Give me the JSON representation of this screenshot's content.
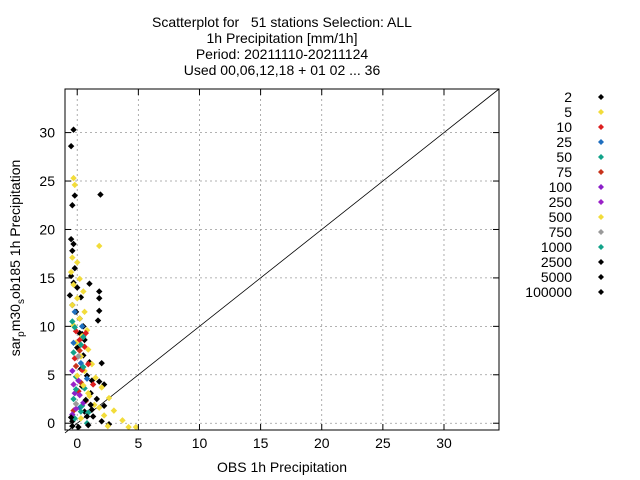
{
  "chart_data": {
    "type": "scatter",
    "title_lines": [
      "Scatterplot for   51 stations Selection: ALL",
      "1h Precipitation [mm/1h]",
      "Period: 20211110-20211124",
      "Used 00,06,12,18 + 01 02 ... 36"
    ],
    "xlabel": "OBS 1h Precipitation",
    "ylabel_main": "sar",
    "ylabel_sub1": "p",
    "ylabel_mid": "m30",
    "ylabel_sub2": "s",
    "ylabel_tail": "ob185 1h Precipitation",
    "xlim": [
      -1,
      34.5
    ],
    "ylim": [
      -0.7,
      34.5
    ],
    "xticks": [
      0,
      5,
      10,
      15,
      20,
      25,
      30
    ],
    "yticks": [
      0,
      5,
      10,
      15,
      20,
      25,
      30
    ],
    "grid": true,
    "diagonal": [
      [
        -1,
        -1
      ],
      [
        34.5,
        34.5
      ]
    ],
    "legend_position": "right",
    "series": [
      {
        "name": "2",
        "color": "#000000",
        "points": [
          [
            -0.5,
            28.6
          ],
          [
            -0.3,
            30.3
          ],
          [
            -0.4,
            22.5
          ],
          [
            -0.2,
            23.5
          ],
          [
            -0.5,
            19
          ],
          [
            -0.3,
            18.5
          ],
          [
            -0.4,
            17.8
          ],
          [
            -0.2,
            16
          ],
          [
            -0.5,
            15.2
          ],
          [
            -0.3,
            14.5
          ],
          [
            0.0,
            14
          ],
          [
            0.3,
            13
          ],
          [
            -0.4,
            12.2
          ],
          [
            -0.1,
            11.5
          ],
          [
            0.2,
            10.8
          ],
          [
            0.5,
            10
          ],
          [
            0.2,
            9.3
          ],
          [
            0.6,
            8.6
          ],
          [
            0.0,
            7.8
          ],
          [
            0.5,
            7
          ],
          [
            1.0,
            6.3
          ],
          [
            0.3,
            5.6
          ],
          [
            0.8,
            4.9
          ],
          [
            1.2,
            4.4
          ],
          [
            1.8,
            4.3
          ],
          [
            0.4,
            3.8
          ],
          [
            1.1,
            3.1
          ],
          [
            1.6,
            2.5
          ],
          [
            2.2,
            1.8
          ],
          [
            0.6,
            1.2
          ],
          [
            1.3,
            0.7
          ],
          [
            2.0,
            0.2
          ],
          [
            2.6,
            -0.1
          ],
          [
            -0.4,
            0.2
          ],
          [
            0.1,
            -0.4
          ],
          [
            1.9,
            23.6
          ],
          [
            1.8,
            13.6
          ],
          [
            1.8,
            12.9
          ],
          [
            1.7,
            10.6
          ],
          [
            0.4,
            9.2
          ],
          [
            1.0,
            14.4
          ],
          [
            2.0,
            6.2
          ],
          [
            2.2,
            4.0
          ],
          [
            -0.6,
            13.2
          ],
          [
            1.8,
            11.6
          ]
        ]
      },
      {
        "name": "5",
        "color": "#f2dc3a",
        "points": [
          [
            -0.3,
            25.3
          ],
          [
            -0.2,
            24.6
          ],
          [
            1.8,
            18.3
          ],
          [
            -0.4,
            17.1
          ],
          [
            0.0,
            16.6
          ],
          [
            -0.5,
            15.6
          ],
          [
            0.2,
            14.9
          ],
          [
            -0.3,
            14.3
          ],
          [
            0.5,
            13.6
          ],
          [
            0.0,
            12.9
          ],
          [
            -0.4,
            12.2
          ],
          [
            0.6,
            11.5
          ],
          [
            0.2,
            10.8
          ],
          [
            -0.3,
            10.1
          ],
          [
            0.8,
            9.6
          ],
          [
            0.4,
            9.0
          ],
          [
            -0.1,
            8.3
          ],
          [
            0.9,
            7.6
          ],
          [
            0.3,
            6.9
          ],
          [
            1.2,
            6.1
          ],
          [
            0.6,
            5.4
          ],
          [
            1.5,
            4.7
          ],
          [
            2.0,
            3.7
          ],
          [
            0.9,
            3.1
          ],
          [
            2.6,
            2.6
          ],
          [
            1.4,
            1.9
          ],
          [
            3.0,
            1.3
          ],
          [
            2.2,
            0.8
          ],
          [
            3.7,
            0.3
          ],
          [
            4.2,
            -0.4
          ],
          [
            4.8,
            -0.4
          ],
          [
            2.5,
            -0.3
          ]
        ]
      },
      {
        "name": "10",
        "color": "#dd1f1f",
        "points": [
          [
            -0.1,
            9.5
          ],
          [
            0.7,
            9.3
          ],
          [
            0.2,
            8.6
          ],
          [
            0.6,
            7.9
          ],
          [
            -0.2,
            6.7
          ],
          [
            0.9,
            6.1
          ],
          [
            0.4,
            5.5
          ],
          [
            1.3,
            4.0
          ],
          [
            0.1,
            3.3
          ]
        ]
      },
      {
        "name": "25",
        "color": "#1f6fbf",
        "points": [
          [
            -0.2,
            11.5
          ],
          [
            0.4,
            10.0
          ],
          [
            -0.3,
            8.3
          ],
          [
            0.3,
            6.2
          ],
          [
            0.8,
            4.6
          ],
          [
            0.2,
            1.6
          ]
        ]
      },
      {
        "name": "50",
        "color": "#12a38a",
        "points": [
          [
            -0.4,
            10.5
          ],
          [
            0.5,
            8.9
          ],
          [
            -0.3,
            7.3
          ],
          [
            0.5,
            5.8
          ],
          [
            -0.1,
            4.8
          ],
          [
            0.6,
            3.6
          ],
          [
            -0.3,
            2.5
          ],
          [
            0.4,
            1.8
          ],
          [
            0.9,
            1.1
          ],
          [
            -0.2,
            0.5
          ],
          [
            0.8,
            0.0
          ]
        ]
      },
      {
        "name": "75",
        "color": "#c8331b",
        "points": [
          [
            0.2,
            7.5
          ],
          [
            -0.1,
            5.9
          ],
          [
            0.3,
            4.2
          ],
          [
            -0.3,
            1.3
          ],
          [
            0.7,
            2.3
          ]
        ]
      },
      {
        "name": "100",
        "color": "#8b1fc9",
        "points": [
          [
            -0.4,
            5.4
          ],
          [
            0.1,
            4.4
          ],
          [
            -0.2,
            3.1
          ],
          [
            0.5,
            2.1
          ],
          [
            -0.4,
            0.9
          ]
        ]
      },
      {
        "name": "250",
        "color": "#9b22c8",
        "points": [
          [
            -0.3,
            4.0
          ],
          [
            0.2,
            2.9
          ],
          [
            -0.1,
            1.5
          ]
        ]
      },
      {
        "name": "500",
        "color": "#f2dc3a",
        "points": [
          [
            0.0,
            4.9
          ],
          [
            0.5,
            3.9
          ],
          [
            1.0,
            2.8
          ],
          [
            1.8,
            1.6
          ],
          [
            0.3,
            0.5
          ]
        ]
      },
      {
        "name": "750",
        "color": "#9a9a9a",
        "points": [
          [
            0.1,
            6.9
          ],
          [
            -0.1,
            2.0
          ]
        ]
      },
      {
        "name": "1000",
        "color": "#12a38a",
        "points": [
          [
            -0.2,
            9.9
          ],
          [
            0.3,
            8.1
          ],
          [
            -0.1,
            3.5
          ],
          [
            0.3,
            1.2
          ]
        ]
      },
      {
        "name": "2500",
        "color": "#000000",
        "points": [
          [
            0.7,
            2.4
          ],
          [
            1.2,
            1.4
          ],
          [
            -0.4,
            -0.3
          ]
        ]
      },
      {
        "name": "5000",
        "color": "#000000",
        "points": [
          [
            0.8,
            0.7
          ],
          [
            1.1,
            1.9
          ]
        ]
      },
      {
        "name": "100000",
        "color": "#000000",
        "points": [
          [
            0.9,
            -0.2
          ],
          [
            -0.5,
            0.6
          ]
        ]
      }
    ]
  }
}
